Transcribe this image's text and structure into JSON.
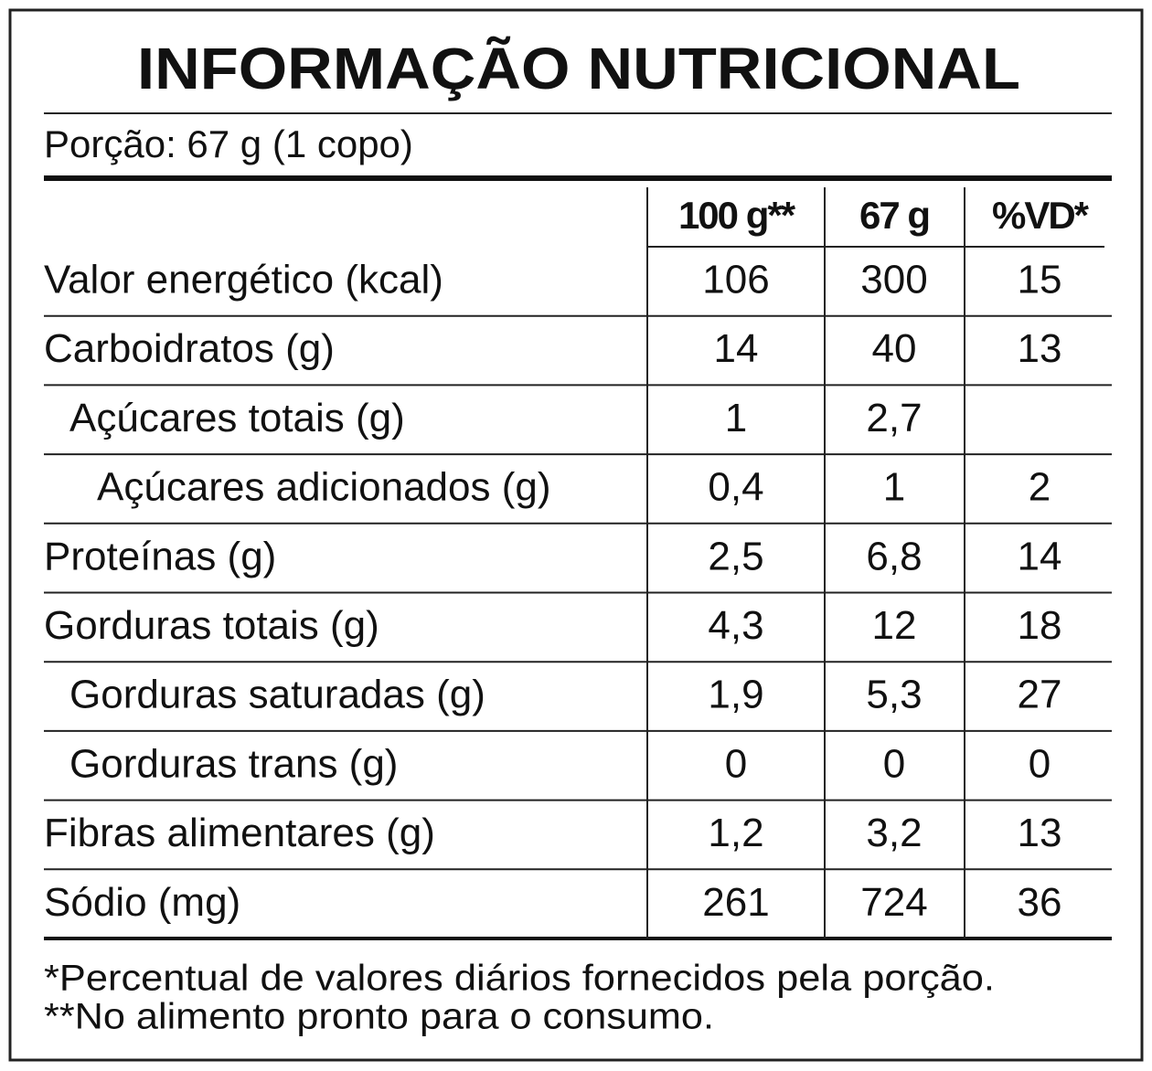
{
  "title": "INFORMAÇÃO NUTRICIONAL",
  "portion": "Porção: 67 g (1 copo)",
  "table": {
    "header": [
      "100 g**",
      "67 g",
      "%VD*"
    ],
    "rows": [
      {
        "label": "Valor energético (kcal)",
        "values": [
          "106",
          "300",
          "15"
        ]
      },
      {
        "label": "Carboidratos (g)",
        "values": [
          "14",
          "40",
          "13"
        ],
        "children": [
          {
            "label": "Açúcares totais (g)",
            "values": [
              "1",
              "2,7",
              null
            ],
            "children": [
              {
                "label": "Açúcares adicionados (g)",
                "values": [
                  "0,4",
                  "1",
                  "2"
                ]
              }
            ]
          }
        ]
      },
      {
        "label": "Proteínas (g)",
        "values": [
          "2,5",
          "6,8",
          "14"
        ]
      },
      {
        "label": "Gorduras totais (g)",
        "values": [
          "4,3",
          "12",
          "18"
        ],
        "children": [
          {
            "label": "Gorduras saturadas (g)",
            "values": [
              "1,9",
              "5,3",
              "27"
            ]
          },
          {
            "label": "Gorduras trans (g)",
            "values": [
              "0",
              "0",
              "0"
            ]
          }
        ]
      },
      {
        "label": "Fibras alimentares (g)",
        "values": [
          "1,2",
          "3,2",
          "13"
        ]
      },
      {
        "label": "Sódio (mg)",
        "values": [
          "261",
          "724",
          "36"
        ]
      }
    ]
  },
  "footnotes": [
    "*Percentual de valores diários fornecidos pela porção.",
    "**No alimento pronto para o consumo."
  ]
}
